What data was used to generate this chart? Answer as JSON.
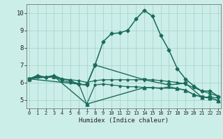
{
  "xlabel": "Humidex (Indice chaleur)",
  "bg_color": "#cceee8",
  "grid_color": "#aad4ce",
  "line_color": "#1a6b5a",
  "x_ticks": [
    0,
    1,
    2,
    3,
    4,
    5,
    6,
    7,
    8,
    9,
    10,
    11,
    12,
    13,
    14,
    15,
    16,
    17,
    18,
    19,
    20,
    21,
    22,
    23
  ],
  "ylim": [
    4.5,
    10.5
  ],
  "xlim": [
    -0.3,
    23.3
  ],
  "yticks": [
    5,
    6,
    7,
    8,
    9,
    10
  ],
  "series": [
    {
      "x": [
        0,
        1,
        2,
        3,
        4,
        5,
        6,
        7,
        8,
        9,
        10,
        11,
        12,
        13,
        14,
        15,
        16,
        17,
        18,
        19,
        20,
        21,
        22,
        23
      ],
      "y": [
        6.2,
        6.4,
        6.3,
        6.4,
        6.2,
        6.1,
        5.9,
        5.85,
        7.0,
        8.35,
        8.8,
        8.85,
        9.0,
        9.65,
        10.15,
        9.8,
        8.7,
        7.85,
        6.8,
        6.2,
        5.8,
        5.5,
        5.5,
        5.2
      ],
      "marker": "D",
      "markersize": 2.5,
      "linewidth": 1.1,
      "linestyle": "-"
    },
    {
      "x": [
        0,
        1,
        2,
        3,
        4,
        5,
        6,
        7,
        8,
        9,
        10,
        11,
        12,
        13,
        14,
        15,
        16,
        17,
        18,
        19,
        20,
        21,
        22,
        23
      ],
      "y": [
        6.2,
        6.3,
        6.3,
        6.3,
        6.2,
        6.15,
        6.1,
        6.0,
        6.1,
        6.15,
        6.15,
        6.15,
        6.15,
        6.15,
        6.15,
        6.15,
        6.1,
        6.05,
        6.0,
        5.9,
        5.7,
        5.5,
        5.35,
        5.2
      ],
      "marker": "D",
      "markersize": 1.8,
      "linewidth": 0.9,
      "linestyle": "-"
    },
    {
      "x": [
        0,
        1,
        2,
        3,
        4,
        5,
        6,
        7,
        8,
        9,
        10,
        11,
        12,
        13,
        14,
        15,
        16,
        17,
        18,
        19,
        20,
        21,
        22,
        23
      ],
      "y": [
        6.2,
        6.35,
        6.25,
        6.35,
        6.1,
        6.0,
        5.95,
        4.75,
        5.85,
        5.9,
        5.85,
        5.8,
        5.75,
        5.75,
        5.7,
        5.7,
        5.65,
        5.75,
        5.65,
        5.55,
        5.3,
        5.15,
        5.1,
        4.95
      ],
      "marker": "D",
      "markersize": 1.8,
      "linewidth": 0.9,
      "linestyle": "-"
    },
    {
      "x": [
        0,
        7,
        8,
        14,
        17,
        19,
        21,
        22,
        23
      ],
      "y": [
        6.2,
        5.85,
        7.0,
        6.15,
        5.85,
        5.95,
        5.15,
        5.15,
        5.1
      ],
      "marker": "v",
      "markersize": 3.5,
      "linewidth": 1.0,
      "linestyle": "-"
    },
    {
      "x": [
        0,
        3,
        7,
        14,
        18,
        19,
        20,
        21,
        22,
        23
      ],
      "y": [
        6.2,
        6.35,
        4.75,
        5.7,
        5.65,
        5.55,
        5.3,
        5.15,
        5.1,
        4.95
      ],
      "marker": "^",
      "markersize": 3.5,
      "linewidth": 1.0,
      "linestyle": "-"
    }
  ]
}
